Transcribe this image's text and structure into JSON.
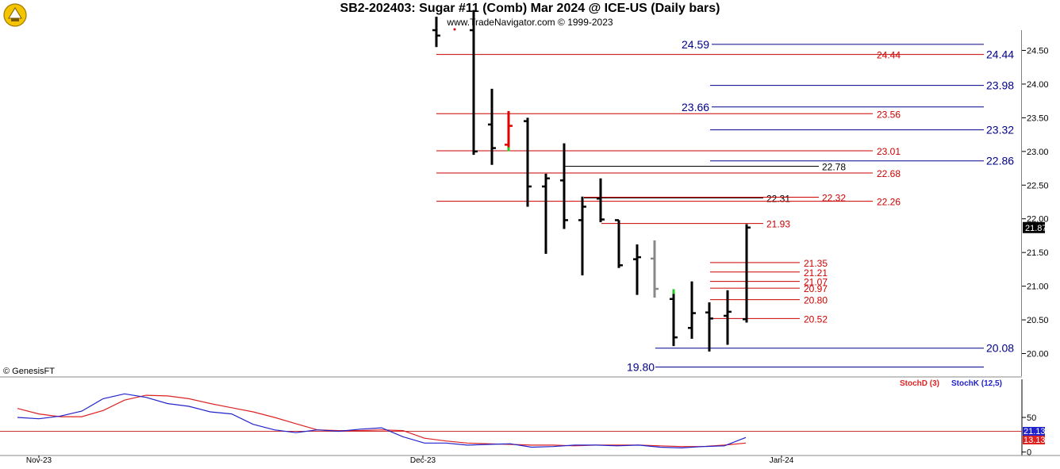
{
  "header": {
    "title": "SB2-202403:  Sugar #11 (Comb) Mar 2024 @ ICE-US  (Daily bars)",
    "subtitle": "www.TradeNavigator.com © 1999-2023",
    "copyright": "© GenesisFT"
  },
  "chart_data": [
    {
      "type": "ohlc",
      "price_axis": {
        "ticks": [
          "20.00",
          "20.50",
          "21.00",
          "21.50",
          "22.00",
          "22.50",
          "23.00",
          "23.50",
          "24.00",
          "24.50"
        ],
        "ylim": [
          19.5,
          25.1
        ],
        "last_price": "21.87",
        "last_price_color": "#000000"
      },
      "x_axis": {
        "labels": [
          "Nov-23",
          "Dec-23",
          "Jan-24"
        ]
      },
      "colors": {
        "bar": "#000000",
        "bar_gray": "#888888",
        "bar_red": "#e00000",
        "green_mark": "#22cc22",
        "red_line": "#cc0000",
        "blue_line": "#00008b",
        "black_line": "#000000"
      },
      "bars": [
        {
          "o": 24.8,
          "h": 25.0,
          "l": 24.55,
          "c": 24.72,
          "color": "black"
        },
        {
          "o": 24.8,
          "h": 25.1,
          "l": 22.95,
          "c": 23.0,
          "color": "black"
        },
        {
          "o": 23.4,
          "h": 23.93,
          "l": 22.8,
          "c": 23.05,
          "color": "black"
        },
        {
          "o": 23.1,
          "h": 23.6,
          "l": 23.05,
          "c": 23.38,
          "color": "red",
          "green_low": true
        },
        {
          "o": 23.45,
          "h": 23.5,
          "l": 22.18,
          "c": 22.48,
          "color": "black"
        },
        {
          "o": 22.48,
          "h": 22.67,
          "l": 21.48,
          "c": 22.6,
          "color": "black"
        },
        {
          "o": 22.57,
          "h": 23.12,
          "l": 21.85,
          "c": 21.98,
          "color": "black"
        },
        {
          "o": 21.98,
          "h": 22.33,
          "l": 21.16,
          "c": 22.18,
          "color": "black"
        },
        {
          "o": 22.3,
          "h": 22.6,
          "l": 21.95,
          "c": 21.99,
          "color": "black"
        },
        {
          "o": 21.98,
          "h": 21.98,
          "l": 21.27,
          "c": 21.31,
          "color": "black"
        },
        {
          "o": 21.4,
          "h": 21.62,
          "l": 20.87,
          "c": 21.43,
          "color": "black"
        },
        {
          "o": 21.41,
          "h": 21.68,
          "l": 20.83,
          "c": 20.96,
          "color": "gray"
        },
        {
          "o": 20.81,
          "h": 20.92,
          "l": 20.11,
          "c": 20.24,
          "color": "black",
          "green_high": true
        },
        {
          "o": 20.38,
          "h": 21.07,
          "l": 20.22,
          "c": 20.6,
          "color": "black"
        },
        {
          "o": 20.61,
          "h": 20.76,
          "l": 20.03,
          "c": 20.52,
          "color": "black"
        },
        {
          "o": 20.56,
          "h": 20.94,
          "l": 20.13,
          "c": 20.62,
          "color": "black"
        },
        {
          "o": 20.51,
          "h": 21.92,
          "l": 20.46,
          "c": 21.87,
          "color": "black"
        }
      ],
      "levels": [
        {
          "price": 24.59,
          "label": "24.59",
          "color": "blue"
        },
        {
          "price": 24.44,
          "label": "24.44",
          "color": "red"
        },
        {
          "price": 24.44,
          "label": "24.44",
          "color": "blue"
        },
        {
          "price": 23.98,
          "label": "23.98",
          "color": "blue"
        },
        {
          "price": 23.66,
          "label": "23.66",
          "color": "blue"
        },
        {
          "price": 23.56,
          "label": "23.56",
          "color": "red"
        },
        {
          "price": 23.32,
          "label": "23.32",
          "color": "blue"
        },
        {
          "price": 23.01,
          "label": "23.01",
          "color": "red"
        },
        {
          "price": 22.86,
          "label": "22.86",
          "color": "blue"
        },
        {
          "price": 22.78,
          "label": "22.78",
          "color": "black"
        },
        {
          "price": 22.68,
          "label": "22.68",
          "color": "red"
        },
        {
          "price": 22.31,
          "label": "22.31",
          "color": "black"
        },
        {
          "price": 22.32,
          "label": "22.32",
          "color": "red"
        },
        {
          "price": 22.26,
          "label": "22.26",
          "color": "red"
        },
        {
          "price": 21.93,
          "label": "21.93",
          "color": "red"
        },
        {
          "price": 21.35,
          "label": "21.35",
          "color": "red"
        },
        {
          "price": 21.21,
          "label": "21.21",
          "color": "red"
        },
        {
          "price": 21.07,
          "label": "21.07",
          "color": "red"
        },
        {
          "price": 20.97,
          "label": "20.97",
          "color": "red"
        },
        {
          "price": 20.8,
          "label": "20.80",
          "color": "red"
        },
        {
          "price": 20.52,
          "label": "20.52",
          "color": "red"
        },
        {
          "price": 20.08,
          "label": "20.08",
          "color": "blue"
        },
        {
          "price": 19.8,
          "label": "19.80",
          "color": "blue"
        }
      ]
    },
    {
      "type": "line",
      "legend": [
        {
          "name": "StochD (3)",
          "color": "#dd2222"
        },
        {
          "name": "StochK (12,5)",
          "color": "#2222cc"
        }
      ],
      "y_axis": {
        "ticks": [
          "0",
          "50"
        ],
        "ylim": [
          -5,
          105
        ],
        "reference": 30
      },
      "last_values": [
        {
          "label": "21.13",
          "color": "#2222cc"
        },
        {
          "label": "13.13",
          "color": "#dd2222"
        }
      ],
      "series": [
        {
          "name": "StochD (3)",
          "color": "#dd2222",
          "values": [
            63,
            55,
            51,
            51,
            60,
            75,
            82,
            81,
            77,
            70,
            64,
            58,
            50,
            41,
            32,
            31,
            31,
            32,
            31,
            20,
            16,
            13,
            12,
            11,
            10,
            10,
            9,
            10,
            10,
            10,
            9,
            8,
            8,
            10,
            13
          ]
        },
        {
          "name": "StochK (12,5)",
          "color": "#2222cc",
          "values": [
            50,
            48,
            52,
            59,
            77,
            84,
            79,
            70,
            66,
            58,
            55,
            40,
            32,
            28,
            32,
            30,
            33,
            35,
            22,
            13,
            13,
            10,
            11,
            12,
            7,
            8,
            10,
            10,
            9,
            10,
            7,
            6,
            8,
            9,
            21
          ]
        }
      ]
    }
  ]
}
